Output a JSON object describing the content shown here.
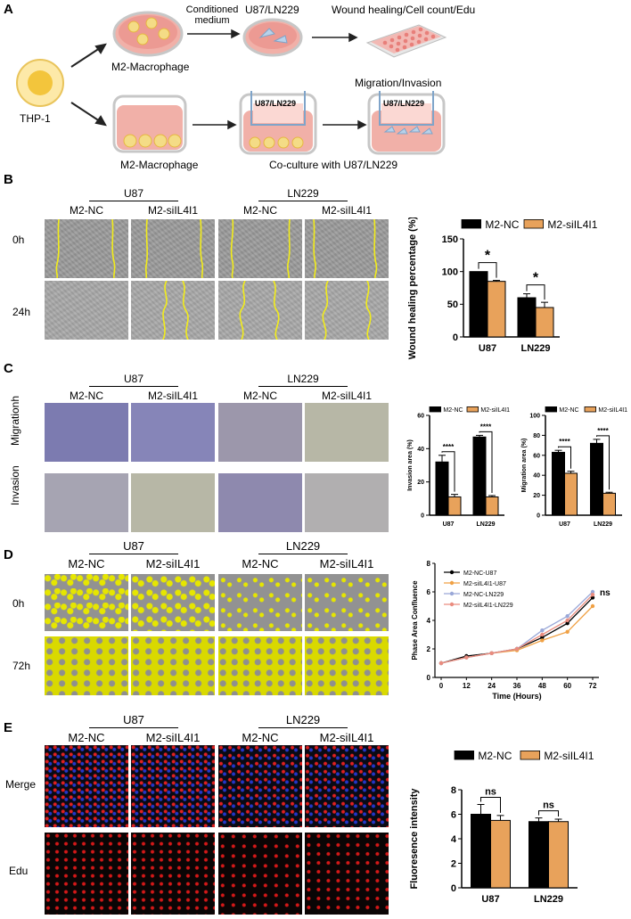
{
  "panel_labels": [
    "A",
    "B",
    "C",
    "D",
    "E"
  ],
  "colors": {
    "black": "#000000",
    "orange": "#e8a25b",
    "wound_line": "#f2ec1a",
    "dish": "#e88a8a",
    "cell": "#f3d26b",
    "blue_line": "#9aa8d8",
    "pink_line": "#ea8c7f",
    "orange_line": "#f0a145"
  },
  "panelA": {
    "thp1": "THP-1",
    "m2_top": "M2-Macrophage",
    "m2_bottom": "M2-Macrophage",
    "conditioned": "Conditioned\nmedium",
    "u87ln229_top": "U87/LN229",
    "wound_text": "Wound healing/Cell count/Edu",
    "migration_text": "Migration/Invasion",
    "insert_label_1": "U87/LN229",
    "insert_label_2": "U87/LN229",
    "coculture": "Co-culture with U87/LN229"
  },
  "panelB": {
    "groups": [
      "U87",
      "LN229"
    ],
    "conditions": [
      "M2-NC",
      "M2-siIL4I1",
      "M2-NC",
      "M2-siIL4I1"
    ],
    "rows": [
      "0h",
      "24h"
    ]
  },
  "panelC": {
    "groups": [
      "U87",
      "LN229"
    ],
    "conditions": [
      "M2-NC",
      "M2-siIL4I1",
      "M2-NC",
      "M2-siIL4I1"
    ],
    "rows": [
      "Migrationh",
      "Invasion"
    ]
  },
  "panelD": {
    "groups": [
      "U87",
      "LN229"
    ],
    "conditions": [
      "M2-NC",
      "M2-siIL4I1",
      "M2-NC",
      "M2-siIL4I1"
    ],
    "rows": [
      "0h",
      "72h"
    ]
  },
  "panelE": {
    "groups": [
      "U87",
      "LN229"
    ],
    "conditions": [
      "M2-NC",
      "M2-siIL4I1",
      "M2-NC",
      "M2-siIL4I1"
    ],
    "rows": [
      "Merge",
      "Edu"
    ]
  },
  "chart_data": [
    {
      "id": "B",
      "type": "bar",
      "categories": [
        "U87",
        "LN229"
      ],
      "series": [
        {
          "name": "M2-NC",
          "values": [
            100,
            60
          ],
          "errors": [
            0,
            6
          ],
          "color": "#000000"
        },
        {
          "name": "M2-siIL4I1",
          "values": [
            85,
            45
          ],
          "errors": [
            1.5,
            8
          ],
          "color": "#e8a25b"
        }
      ],
      "ylabel": "Wound healing percentage (%)",
      "ylim": [
        0,
        150
      ],
      "yticks": [
        0,
        50,
        100,
        150
      ],
      "annotations": [
        "*",
        "*"
      ]
    },
    {
      "id": "C1",
      "type": "bar",
      "categories": [
        "U87",
        "LN229"
      ],
      "series": [
        {
          "name": "M2-NC",
          "values": [
            32,
            47
          ],
          "errors": [
            4,
            1
          ],
          "color": "#000000"
        },
        {
          "name": "M2-siIL4I1",
          "values": [
            11,
            11
          ],
          "errors": [
            1.5,
            0.8
          ],
          "color": "#e8a25b"
        }
      ],
      "ylabel": "Invasion area (%)",
      "ylim": [
        0,
        60
      ],
      "yticks": [
        0,
        20,
        40,
        60
      ],
      "annotations": [
        "****",
        "****"
      ]
    },
    {
      "id": "C2",
      "type": "bar",
      "categories": [
        "U87",
        "LN229"
      ],
      "series": [
        {
          "name": "M2-NC",
          "values": [
            63,
            72
          ],
          "errors": [
            2,
            4
          ],
          "color": "#000000"
        },
        {
          "name": "M2-siIL4I1",
          "values": [
            42,
            22
          ],
          "errors": [
            2,
            1
          ],
          "color": "#e8a25b"
        }
      ],
      "ylabel": "Migration area (%)",
      "ylim": [
        0,
        100
      ],
      "yticks": [
        0,
        20,
        40,
        60,
        80,
        100
      ],
      "annotations": [
        "****",
        "****"
      ]
    },
    {
      "id": "D",
      "type": "line",
      "x": [
        0,
        12,
        24,
        36,
        48,
        60,
        72
      ],
      "series": [
        {
          "name": "M2-NC-U87",
          "values": [
            1.0,
            1.5,
            1.7,
            2.0,
            2.8,
            3.8,
            5.6
          ],
          "color": "#000000"
        },
        {
          "name": "M2-siIL4I1-U87",
          "values": [
            1.0,
            1.4,
            1.7,
            1.9,
            2.6,
            3.2,
            5.0
          ],
          "color": "#f0a145"
        },
        {
          "name": "M2-NC-LN229",
          "values": [
            1.0,
            1.4,
            1.7,
            2.0,
            3.3,
            4.3,
            6.0
          ],
          "color": "#9aa8d8"
        },
        {
          "name": "M2-siIL4I1-LN229",
          "values": [
            1.0,
            1.4,
            1.7,
            2.0,
            3.0,
            4.0,
            5.8
          ],
          "color": "#ea8c7f"
        }
      ],
      "xlabel": "Time (Hours)",
      "ylabel": "Phase Area Confluence",
      "xlim": [
        0,
        72
      ],
      "ylim": [
        0,
        8
      ],
      "xticks": [
        0,
        12,
        24,
        36,
        48,
        60,
        72
      ],
      "yticks": [
        0,
        2,
        4,
        6,
        8
      ],
      "annotations": [
        "ns"
      ]
    },
    {
      "id": "E",
      "type": "bar",
      "categories": [
        "U87",
        "LN229"
      ],
      "series": [
        {
          "name": "M2-NC",
          "values": [
            6.0,
            5.4
          ],
          "errors": [
            0.8,
            0.3
          ],
          "color": "#000000"
        },
        {
          "name": "M2-siIL4I1",
          "values": [
            5.5,
            5.4
          ],
          "errors": [
            0.4,
            0.2
          ],
          "color": "#e8a25b"
        }
      ],
      "ylabel": "Fluoresence intensity",
      "ylim": [
        0,
        8
      ],
      "yticks": [
        0,
        2,
        4,
        6,
        8
      ],
      "annotations": [
        "ns",
        "ns"
      ]
    }
  ]
}
